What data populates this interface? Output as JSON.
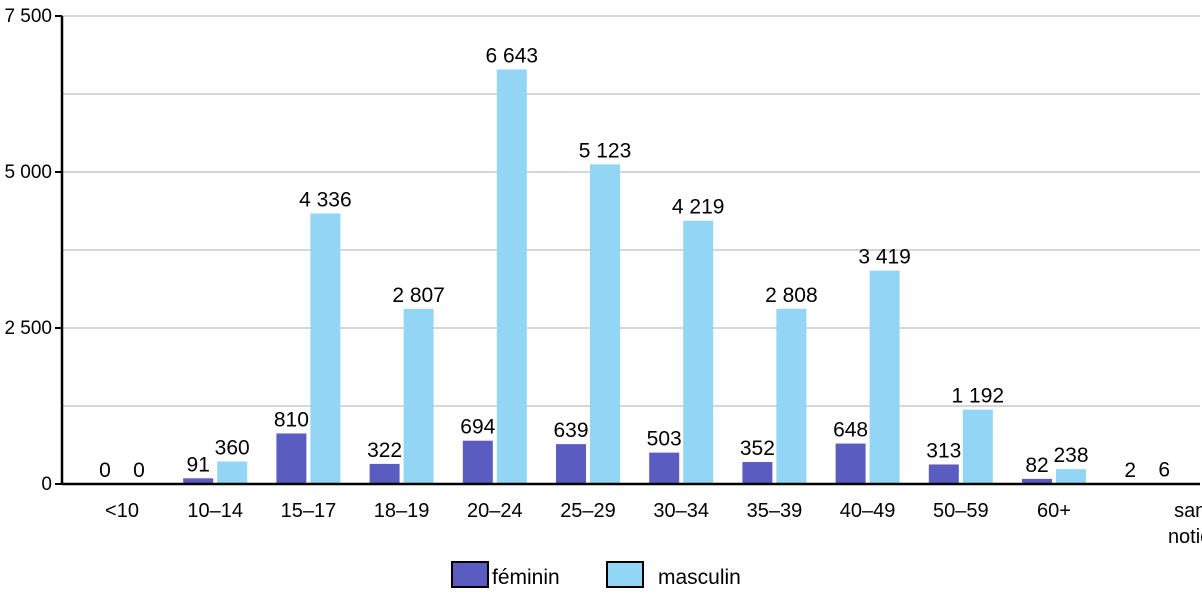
{
  "chart_data": {
    "type": "bar",
    "categories": [
      "<10",
      "10–14",
      "15–17",
      "18–19",
      "20–24",
      "25–29",
      "30–34",
      "35–39",
      "40–49",
      "50–59",
      "60+",
      "sans notion"
    ],
    "category_lines": [
      [
        "<10"
      ],
      [
        "10–14"
      ],
      [
        "15–17"
      ],
      [
        "18–19"
      ],
      [
        "20–24"
      ],
      [
        "25–29"
      ],
      [
        "30–34"
      ],
      [
        "35–39"
      ],
      [
        "40–49"
      ],
      [
        "50–59"
      ],
      [
        "60+"
      ],
      [
        "sans",
        "notion"
      ]
    ],
    "series": [
      {
        "name": "féminin",
        "color": "#5b5cc0",
        "values": [
          0,
          91,
          810,
          322,
          694,
          639,
          503,
          352,
          648,
          313,
          82,
          2
        ],
        "labels": [
          "0",
          "91",
          "810",
          "322",
          "694",
          "639",
          "503",
          "352",
          "648",
          "313",
          "82",
          "2"
        ]
      },
      {
        "name": "masculin",
        "color": "#93d5f5",
        "values": [
          0,
          360,
          4336,
          2807,
          6643,
          5123,
          4219,
          2808,
          3419,
          1192,
          238,
          6
        ],
        "labels": [
          "0",
          "360",
          "4 336",
          "2 807",
          "6 643",
          "5 123",
          "4 219",
          "2 808",
          "3 419",
          "1 192",
          "238",
          "6"
        ]
      }
    ],
    "ylim": [
      0,
      7500
    ],
    "yticks": [
      0,
      2500,
      5000,
      7500
    ],
    "ytick_labels": [
      "0",
      "2 500",
      "5 000",
      "7 500"
    ],
    "gridlines": [
      1250,
      2500,
      3750,
      5000,
      6250,
      7500
    ],
    "grid": true,
    "legend_position": "bottom-center"
  }
}
